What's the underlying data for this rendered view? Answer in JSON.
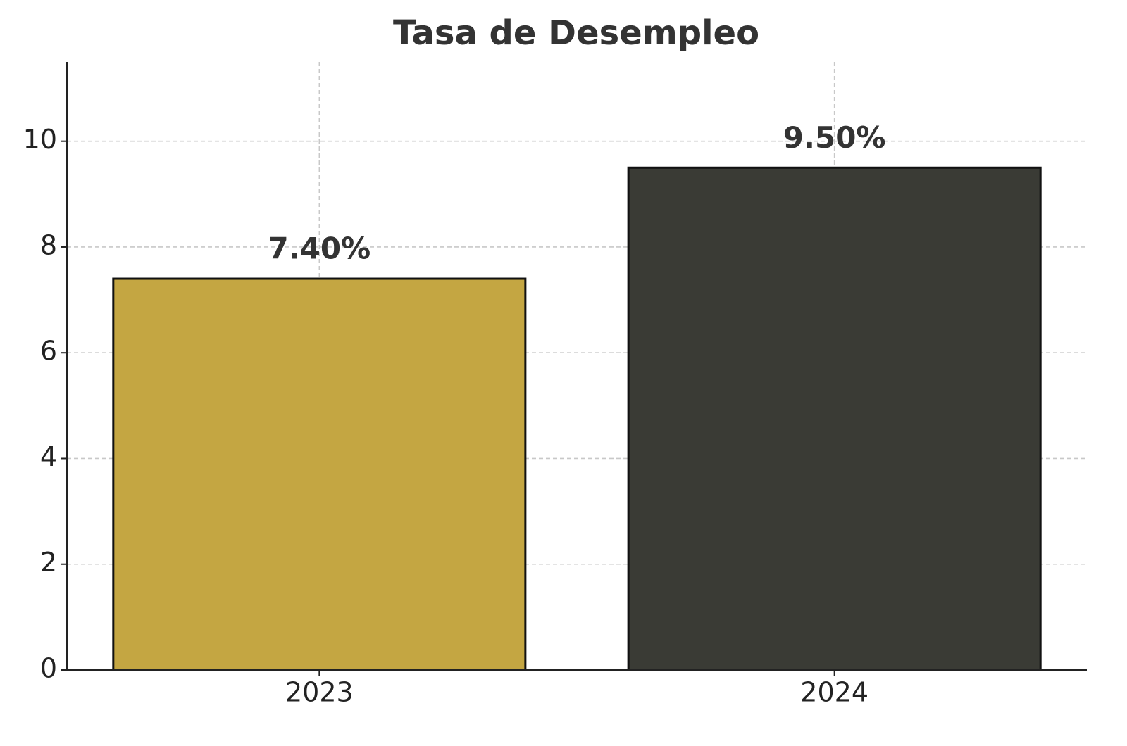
{
  "chart_data": {
    "type": "bar",
    "title": "Tasa de Desempleo",
    "categories": [
      "2023",
      "2024"
    ],
    "values": [
      7.4,
      9.5
    ],
    "value_labels": [
      "7.40%",
      "9.50%"
    ],
    "colors": [
      "#c4a642",
      "#3a3b35"
    ],
    "ylim": [
      0,
      11.5
    ],
    "yticks": [
      0,
      2,
      4,
      6,
      8,
      10
    ],
    "grid": true
  }
}
